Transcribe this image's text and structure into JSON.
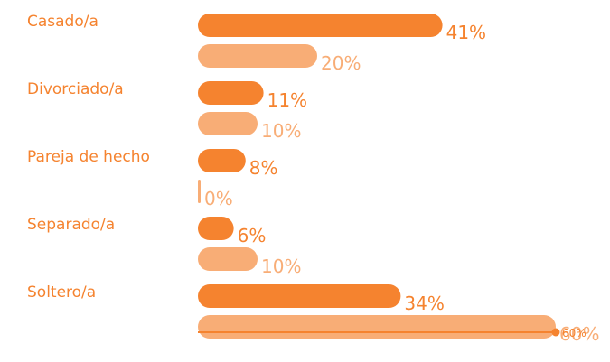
{
  "chart_data": {
    "type": "bar",
    "orientation": "horizontal",
    "categories": [
      "Casado/a",
      "Divorciado/a",
      "Pareja de hecho",
      "Separado/a",
      "Soltero/a"
    ],
    "series": [
      {
        "color": "#f5832f",
        "values": [
          41,
          11,
          8,
          6,
          34
        ],
        "value_labels": [
          "41%",
          "11%",
          "8%",
          "6%",
          "34%"
        ]
      },
      {
        "color": "#f8ad76",
        "values": [
          20,
          10,
          0,
          10,
          60
        ],
        "value_labels": [
          "20%",
          "10%",
          "0%",
          "10%",
          "60%"
        ]
      }
    ],
    "xlim": [
      0,
      60
    ],
    "xticks": [
      {
        "value": 60,
        "label": "60%"
      }
    ]
  }
}
